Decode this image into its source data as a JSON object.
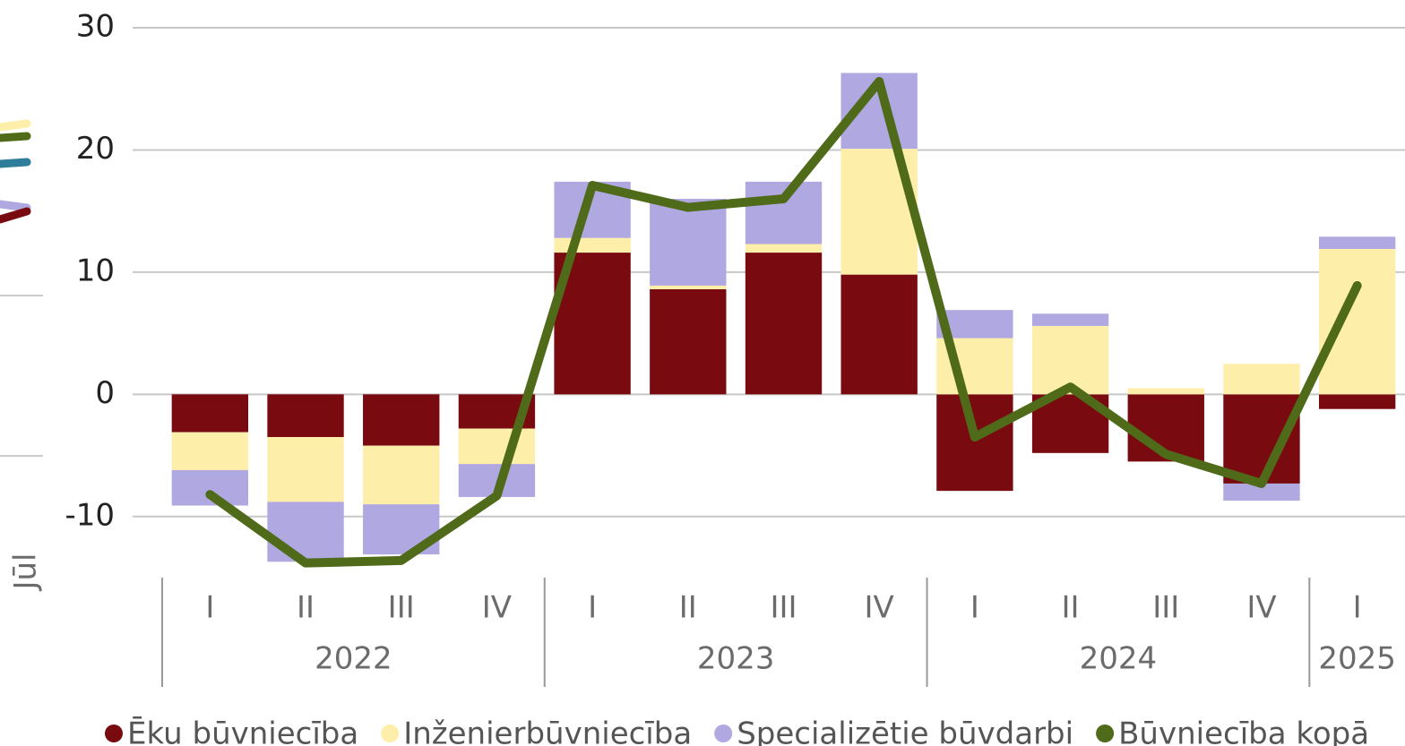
{
  "chart_data": {
    "type": "bar",
    "stacked": true,
    "y_label": "Jūl",
    "categories": [
      [
        "2022",
        "I"
      ],
      [
        "2022",
        "II"
      ],
      [
        "2022",
        "III"
      ],
      [
        "2022",
        "IV"
      ],
      [
        "2023",
        "I"
      ],
      [
        "2023",
        "II"
      ],
      [
        "2023",
        "III"
      ],
      [
        "2023",
        "IV"
      ],
      [
        "2024",
        "I"
      ],
      [
        "2024",
        "II"
      ],
      [
        "2024",
        "III"
      ],
      [
        "2024",
        "IV"
      ],
      [
        "2025",
        "I"
      ]
    ],
    "series": [
      {
        "name": "Ēku būvniecība",
        "color": "#780a10",
        "values": [
          -3.1,
          -3.5,
          -4.2,
          -2.8,
          11.6,
          8.6,
          11.6,
          9.8,
          -7.9,
          -4.8,
          -5.5,
          -7.3,
          -1.2
        ]
      },
      {
        "name": "Inženierbūvniecība",
        "color": "#fdeeaa",
        "values": [
          -3.1,
          -5.3,
          -4.8,
          -2.9,
          1.2,
          0.3,
          0.7,
          10.3,
          4.6,
          5.6,
          0.5,
          2.5,
          11.9
        ]
      },
      {
        "name": "Specializētie būvdarbi",
        "color": "#b0a8e0",
        "values": [
          -2.9,
          -4.9,
          -4.1,
          -2.7,
          4.6,
          7.1,
          5.1,
          6.2,
          2.3,
          1.0,
          0,
          -1.4,
          1.0
        ]
      },
      {
        "name": "Būvniecība kopā",
        "color": "#4f6b1a",
        "type": "line",
        "values": [
          -8.2,
          -13.8,
          -13.6,
          -8.3,
          17.1,
          15.3,
          16.0,
          25.6,
          -3.5,
          0.6,
          -4.9,
          -7.3,
          8.9
        ]
      }
    ],
    "ylim": [
      -15,
      30
    ],
    "yticks": [
      -10,
      0,
      10,
      20,
      30
    ],
    "grid": true,
    "legend": "bottom"
  }
}
